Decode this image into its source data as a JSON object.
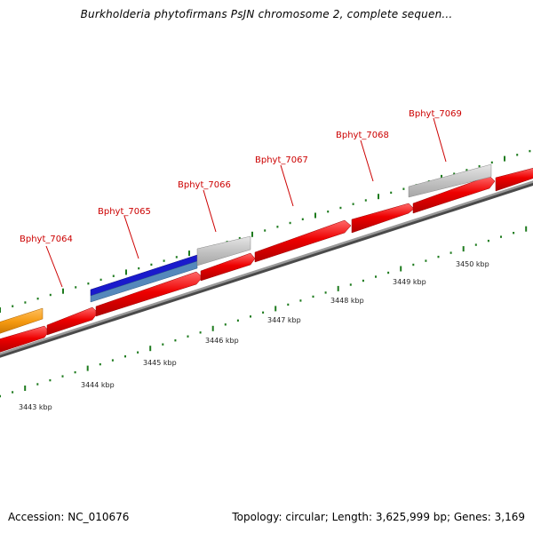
{
  "title": "Burkholderia phytofirmans PsJN chromosome 2, complete sequen...",
  "footer": {
    "accession": "Accession: NC_010676",
    "summary": "Topology: circular; Length: 3,625,999 bp; Genes: 3,169"
  },
  "colors": {
    "forward_gene": "#ee0000",
    "reverse_blue": "#1a1acc",
    "reverse_steel": "#5588bb",
    "pseudo_grey": "#c2c2c2",
    "orange_feature": "#f59a12",
    "backbone": "#888888",
    "tick_green": "#1e7b1e",
    "label_red": "#cc0000"
  },
  "gene_labels": [
    "Bphyt_7064",
    "Bphyt_7065",
    "Bphyt_7066",
    "Bphyt_7067",
    "Bphyt_7068",
    "Bphyt_7069"
  ],
  "scale_labels": [
    "3443 kbp",
    "3444 kbp",
    "3445 kbp",
    "3446 kbp",
    "3447 kbp",
    "3448 kbp",
    "3449 kbp",
    "3450 kbp"
  ]
}
